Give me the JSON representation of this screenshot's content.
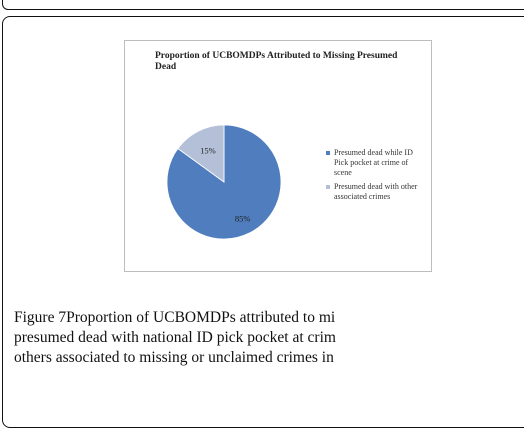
{
  "chart_data": {
    "type": "pie",
    "title": "Proportion of UCBOMDPs Attributed to Missing Presumed Dead",
    "categories": [
      "Presumed dead while ID Pick pocket at crime of scene",
      "Presumed dead with other associated crimes"
    ],
    "values": [
      85,
      15
    ],
    "data_labels": [
      "85%",
      "15%"
    ],
    "colors": [
      "#4f7dbd",
      "#b4c0d8"
    ],
    "legend_position": "right"
  },
  "caption": {
    "line1": "Figure 7Proportion of UCBOMDPs attributed to mi",
    "line2": "presumed dead with national ID pick pocket at crim",
    "line3": "others associated to missing or unclaimed crimes in"
  }
}
